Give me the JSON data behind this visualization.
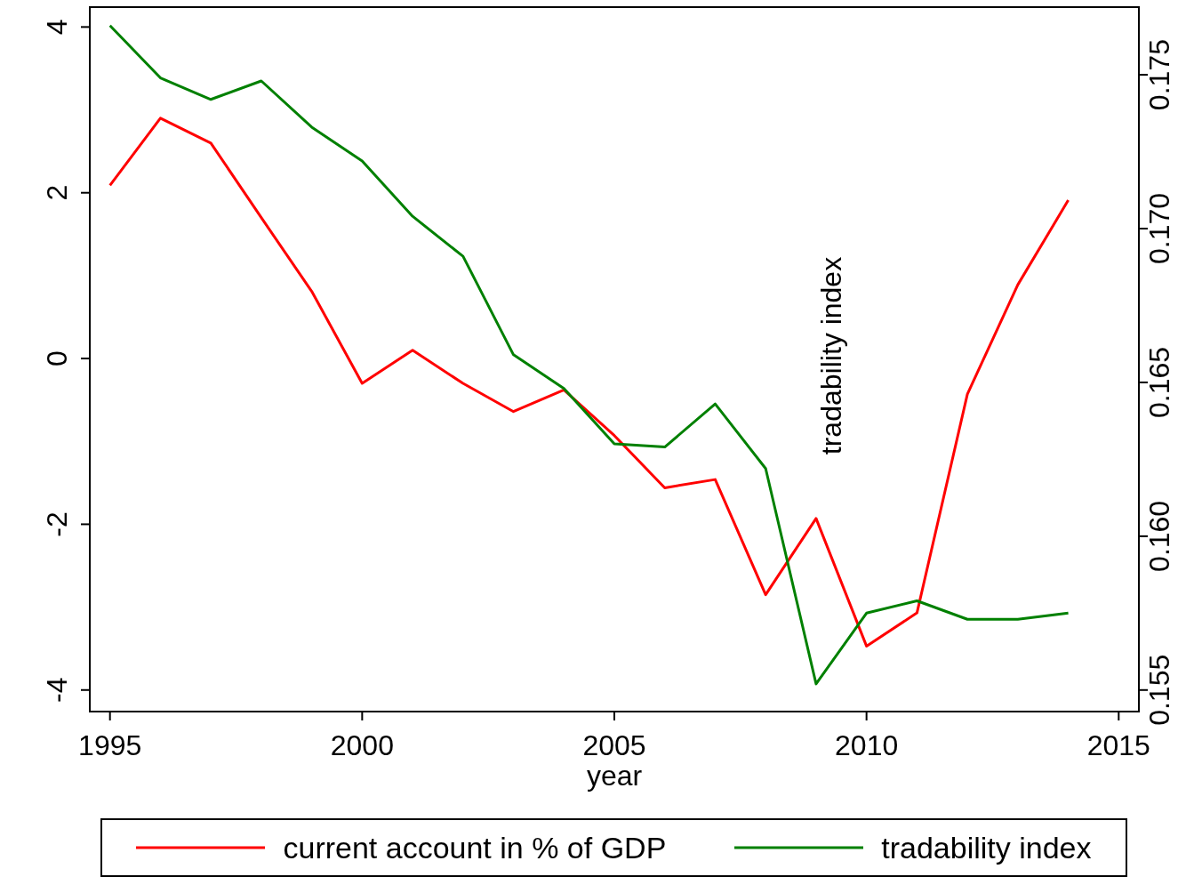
{
  "chart_data": {
    "type": "line",
    "xlabel": "year",
    "y2label": "tradability index",
    "x": [
      1995,
      1996,
      1997,
      1998,
      1999,
      2000,
      2001,
      2002,
      2003,
      2004,
      2005,
      2006,
      2007,
      2008,
      2009,
      2010,
      2011,
      2012,
      2013,
      2014
    ],
    "series": [
      {
        "name": "current account in % of GDP",
        "color": "#ff0000",
        "values": [
          2.09,
          2.9,
          2.6,
          1.7,
          0.81,
          -0.3,
          0.1,
          -0.3,
          -0.64,
          -0.38,
          -0.93,
          -1.56,
          -1.46,
          -2.85,
          -1.93,
          -3.47,
          -3.07,
          -0.43,
          0.89,
          1.91
        ]
      },
      {
        "name": "tradability index",
        "color": "#008000",
        "axis": "y2",
        "values": [
          0.1766,
          0.1749,
          0.1742,
          0.1748,
          0.1733,
          0.1722,
          0.1704,
          0.1691,
          0.1659,
          0.1648,
          0.163,
          0.1629,
          0.1643,
          0.1622,
          0.1552,
          0.1575,
          0.1579,
          0.1573,
          0.1573,
          0.1575
        ]
      }
    ],
    "xlim": [
      1994.6,
      2015.4
    ],
    "xticks": [
      1995,
      2000,
      2005,
      2010,
      2015
    ],
    "ylim": [
      -4.26,
      4.24
    ],
    "yticks": [
      -4,
      -2,
      0,
      2,
      4
    ],
    "y2lim": [
      0.1543,
      0.1772
    ],
    "y2ticks": [
      0.155,
      {
        "value": 0.16,
        "label": "0.160"
      },
      0.165,
      {
        "value": 0.17,
        "label": "0.170"
      },
      0.175
    ],
    "grid": false,
    "legend": "bottom",
    "marker": "none",
    "line_style": "solid"
  }
}
